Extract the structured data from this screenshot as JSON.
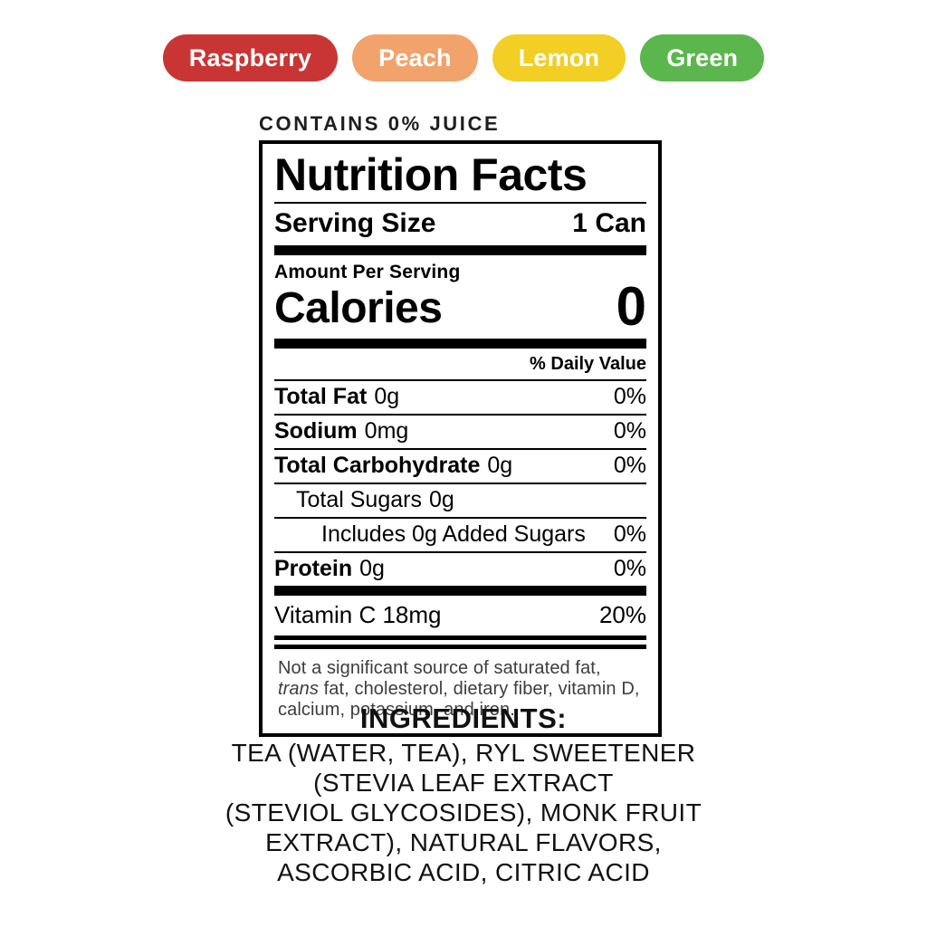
{
  "flavors": {
    "items": [
      {
        "label": "Raspberry",
        "color": "#C93534"
      },
      {
        "label": "Peach",
        "color": "#F2A36B"
      },
      {
        "label": "Lemon",
        "color": "#F3CE25"
      },
      {
        "label": "Green",
        "color": "#5BB74D"
      }
    ]
  },
  "juice_note": "CONTAINS 0% JUICE",
  "nutrition": {
    "title": "Nutrition Facts",
    "serving_size_label": "Serving Size",
    "serving_size_value": "1 Can",
    "amount_per_serving": "Amount Per Serving",
    "calories_label": "Calories",
    "calories_value": "0",
    "daily_value_header": "% Daily Value",
    "rows": [
      {
        "name": "Total Fat",
        "amount": "0g",
        "dv": "0%"
      },
      {
        "name": "Sodium",
        "amount": "0mg",
        "dv": "0%"
      },
      {
        "name": "Total Carbohydrate",
        "amount": "0g",
        "dv": "0%"
      },
      {
        "name": "Total Sugars",
        "amount": "0g",
        "dv": ""
      },
      {
        "name": "Includes 0g Added Sugars",
        "amount": "",
        "dv": "0%"
      },
      {
        "name": "Protein",
        "amount": "0g",
        "dv": "0%"
      }
    ],
    "vitamin_row": {
      "name": "Vitamin C 18mg",
      "dv": "20%"
    },
    "footnote": {
      "pre": "Not a significant source of saturated fat, ",
      "italic": "trans",
      "post": " fat, cholesterol, dietary fiber, vitamin D, calcium, potassium, and iron."
    }
  },
  "ingredients": {
    "title": "INGREDIENTS:",
    "lines": [
      "TEA (WATER, TEA), RYL SWEETENER",
      "(STEVIA LEAF EXTRACT",
      "(STEVIOL GLYCOSIDES), MONK FRUIT",
      "EXTRACT), NATURAL FLAVORS,",
      "ASCORBIC ACID, CITRIC ACID"
    ]
  }
}
